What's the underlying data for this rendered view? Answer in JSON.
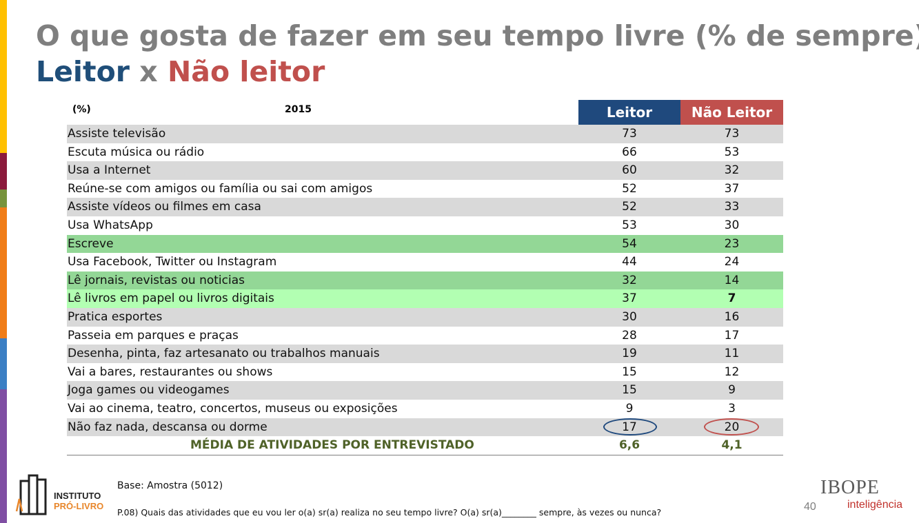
{
  "title": {
    "line1": "O que gosta de fazer em seu tempo livre (% de sempre):",
    "leitor": "Leitor",
    "x": " x ",
    "nao_leitor": "Não leitor"
  },
  "table": {
    "unit_label": "(%)",
    "year": "2015",
    "col_leitor": "Leitor",
    "col_nao_leitor": "Não Leitor",
    "rows": [
      {
        "label": "Assiste televisão",
        "leitor": "73",
        "nao_leitor": "73",
        "style": "gray"
      },
      {
        "label": "Escuta música ou rádio",
        "leitor": "66",
        "nao_leitor": "53",
        "style": "white"
      },
      {
        "label": "Usa a Internet",
        "leitor": "60",
        "nao_leitor": "32",
        "style": "gray"
      },
      {
        "label": "Reúne-se com amigos ou família ou sai com amigos",
        "leitor": "52",
        "nao_leitor": "37",
        "style": "white"
      },
      {
        "label": "Assiste vídeos ou filmes em casa",
        "leitor": "52",
        "nao_leitor": "33",
        "style": "gray"
      },
      {
        "label": "Usa WhatsApp",
        "leitor": "53",
        "nao_leitor": "30",
        "style": "white"
      },
      {
        "label": "Escreve",
        "leitor": "54",
        "nao_leitor": "23",
        "style": "green"
      },
      {
        "label": "Usa Facebook, Twitter  ou Instagram",
        "leitor": "44",
        "nao_leitor": "24",
        "style": "white"
      },
      {
        "label": "Lê jornais, revistas ou noticias",
        "leitor": "32",
        "nao_leitor": "14",
        "style": "green"
      },
      {
        "label": "Lê livros em papel ou livros digitais",
        "leitor": "37",
        "nao_leitor": "7",
        "style": "lightgreen"
      },
      {
        "label": "Pratica esportes",
        "leitor": "30",
        "nao_leitor": "16",
        "style": "gray"
      },
      {
        "label": "Passeia em parques e praças",
        "leitor": "28",
        "nao_leitor": "17",
        "style": "white"
      },
      {
        "label": "Desenha, pinta, faz artesanato ou trabalhos manuais",
        "leitor": "19",
        "nao_leitor": "11",
        "style": "gray"
      },
      {
        "label": "Vai a bares, restaurantes ou shows",
        "leitor": "15",
        "nao_leitor": "12",
        "style": "white"
      },
      {
        "label": "Joga games ou videogames",
        "leitor": "15",
        "nao_leitor": "9",
        "style": "gray"
      },
      {
        "label": "Vai ao cinema, teatro, concertos, museus ou exposições",
        "leitor": "9",
        "nao_leitor": "3",
        "style": "white"
      },
      {
        "label": "Não faz nada, descansa ou dorme",
        "leitor": "17",
        "nao_leitor": "20",
        "style": "gray"
      }
    ],
    "total": {
      "label": "MÉDIA DE ATIVIDADES POR ENTREVISTADO",
      "leitor": "6,6",
      "nao_leitor": "4,1"
    }
  },
  "logo": {
    "line1": "INSTITUTO",
    "line2": "PRÓ-LIVRO"
  },
  "base": "Base: Amostra (5012)",
  "question": "P.08) Quais das atividades que eu vou ler o(a) sr(a) realiza no seu tempo livre? O(a) sr(a)________ sempre, às vezes ou nunca?",
  "page_number": "40",
  "brand": {
    "name": "IBOPE",
    "sub": "inteligência"
  },
  "colors": {
    "leitor": "#1f497d",
    "nao_leitor": "#c0504d",
    "row_gray": "#d9d9d9",
    "row_green": "#93d796",
    "row_lightgreen": "#b2ffb2",
    "total_text": "#4f6228"
  }
}
